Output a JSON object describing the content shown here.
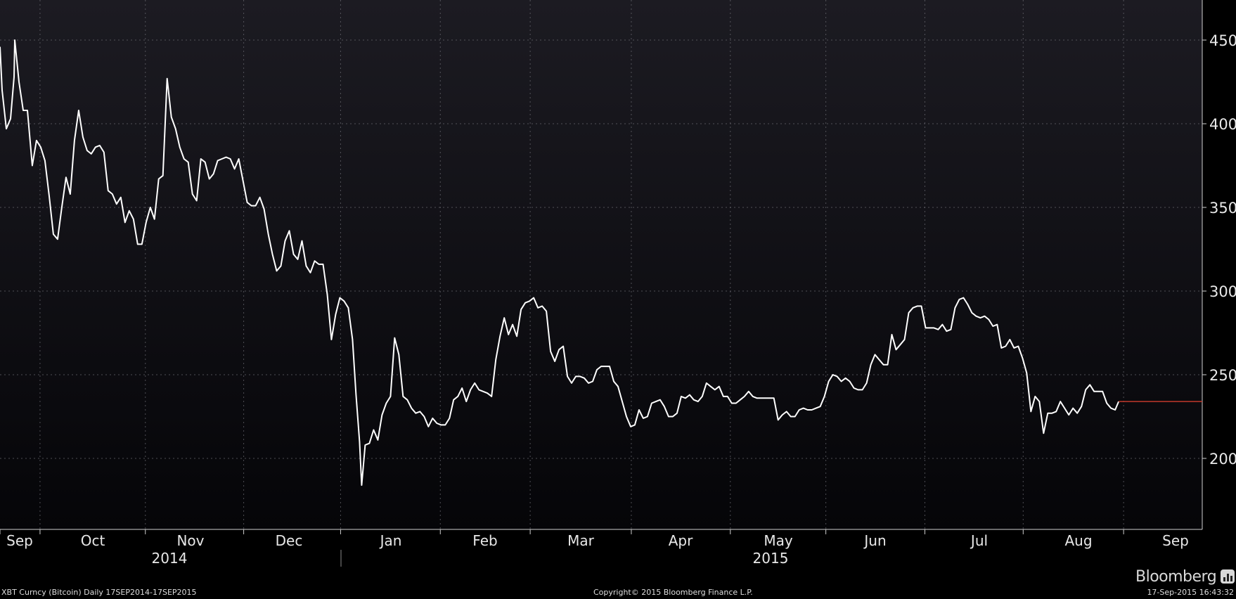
{
  "chart_data": {
    "type": "line",
    "series": [
      {
        "values": [
          [
            0,
            446
          ],
          [
            3,
            420
          ],
          [
            9,
            397
          ],
          [
            15,
            403
          ],
          [
            20,
            428
          ],
          [
            21,
            450
          ],
          [
            27,
            425
          ],
          [
            33,
            408
          ],
          [
            39,
            408
          ],
          [
            46,
            375
          ],
          [
            52,
            390
          ],
          [
            58,
            386
          ],
          [
            64,
            378
          ],
          [
            70,
            357
          ],
          [
            76,
            334
          ],
          [
            82,
            331
          ],
          [
            88,
            350
          ],
          [
            94,
            368
          ],
          [
            100,
            358
          ],
          [
            106,
            390
          ],
          [
            112,
            408
          ],
          [
            118,
            392
          ],
          [
            124,
            384
          ],
          [
            130,
            382
          ],
          [
            136,
            386
          ],
          [
            142,
            387
          ],
          [
            148,
            383
          ],
          [
            154,
            360
          ],
          [
            160,
            358
          ],
          [
            166,
            352
          ],
          [
            172,
            356
          ],
          [
            178,
            341
          ],
          [
            184,
            348
          ],
          [
            190,
            343
          ],
          [
            196,
            328
          ],
          [
            202,
            328
          ],
          [
            208,
            341
          ],
          [
            214,
            350
          ],
          [
            220,
            343
          ],
          [
            226,
            367
          ],
          [
            232,
            369
          ],
          [
            238,
            427
          ],
          [
            244,
            404
          ],
          [
            250,
            397
          ],
          [
            256,
            386
          ],
          [
            262,
            379
          ],
          [
            268,
            377
          ],
          [
            274,
            358
          ],
          [
            280,
            354
          ],
          [
            286,
            379
          ],
          [
            292,
            377
          ],
          [
            298,
            367
          ],
          [
            304,
            370
          ],
          [
            310,
            378
          ],
          [
            316,
            379
          ],
          [
            322,
            380
          ],
          [
            328,
            379
          ],
          [
            334,
            373
          ],
          [
            340,
            379
          ],
          [
            346,
            366
          ],
          [
            352,
            353
          ],
          [
            358,
            351
          ],
          [
            364,
            351
          ],
          [
            370,
            356
          ],
          [
            376,
            349
          ],
          [
            382,
            334
          ],
          [
            388,
            322
          ],
          [
            394,
            312
          ],
          [
            400,
            315
          ],
          [
            406,
            330
          ],
          [
            412,
            336
          ],
          [
            418,
            322
          ],
          [
            424,
            319
          ],
          [
            430,
            330
          ],
          [
            436,
            315
          ],
          [
            442,
            311
          ],
          [
            448,
            318
          ],
          [
            454,
            316
          ],
          [
            460,
            316
          ],
          [
            466,
            298
          ],
          [
            472,
            271
          ],
          [
            478,
            286
          ],
          [
            484,
            296
          ],
          [
            490,
            294
          ],
          [
            496,
            290
          ],
          [
            502,
            271
          ],
          [
            507,
            238
          ],
          [
            512,
            210
          ],
          [
            515,
            184
          ],
          [
            520,
            208
          ],
          [
            526,
            209
          ],
          [
            532,
            217
          ],
          [
            538,
            211
          ],
          [
            544,
            226
          ],
          [
            550,
            233
          ],
          [
            556,
            237
          ],
          [
            562,
            272
          ],
          [
            568,
            262
          ],
          [
            574,
            237
          ],
          [
            580,
            235
          ],
          [
            586,
            230
          ],
          [
            592,
            227
          ],
          [
            598,
            228
          ],
          [
            604,
            225
          ],
          [
            610,
            219
          ],
          [
            616,
            224
          ],
          [
            622,
            221
          ],
          [
            628,
            220
          ],
          [
            634,
            220
          ],
          [
            640,
            224
          ],
          [
            646,
            235
          ],
          [
            652,
            237
          ],
          [
            658,
            242
          ],
          [
            664,
            234
          ],
          [
            670,
            241
          ],
          [
            676,
            245
          ],
          [
            682,
            241
          ],
          [
            688,
            240
          ],
          [
            694,
            239
          ],
          [
            700,
            237
          ],
          [
            706,
            259
          ],
          [
            712,
            273
          ],
          [
            718,
            284
          ],
          [
            724,
            274
          ],
          [
            730,
            280
          ],
          [
            736,
            273
          ],
          [
            742,
            289
          ],
          [
            748,
            293
          ],
          [
            754,
            294
          ],
          [
            760,
            296
          ],
          [
            766,
            290
          ],
          [
            772,
            291
          ],
          [
            778,
            288
          ],
          [
            784,
            264
          ],
          [
            790,
            258
          ],
          [
            796,
            265
          ],
          [
            802,
            267
          ],
          [
            808,
            249
          ],
          [
            814,
            245
          ],
          [
            820,
            249
          ],
          [
            826,
            249
          ],
          [
            832,
            248
          ],
          [
            838,
            245
          ],
          [
            844,
            246
          ],
          [
            850,
            253
          ],
          [
            856,
            255
          ],
          [
            862,
            255
          ],
          [
            868,
            255
          ],
          [
            874,
            246
          ],
          [
            880,
            243
          ],
          [
            886,
            234
          ],
          [
            892,
            225
          ],
          [
            898,
            219
          ],
          [
            904,
            220
          ],
          [
            910,
            229
          ],
          [
            916,
            224
          ],
          [
            922,
            225
          ],
          [
            928,
            233
          ],
          [
            934,
            234
          ],
          [
            940,
            235
          ],
          [
            946,
            231
          ],
          [
            952,
            225
          ],
          [
            958,
            225
          ],
          [
            964,
            227
          ],
          [
            970,
            237
          ],
          [
            976,
            236
          ],
          [
            982,
            238
          ],
          [
            988,
            235
          ],
          [
            994,
            234
          ],
          [
            1000,
            237
          ],
          [
            1006,
            245
          ],
          [
            1012,
            243
          ],
          [
            1018,
            241
          ],
          [
            1024,
            243
          ],
          [
            1030,
            237
          ],
          [
            1036,
            237
          ],
          [
            1042,
            233
          ],
          [
            1048,
            233
          ],
          [
            1054,
            235
          ],
          [
            1060,
            237
          ],
          [
            1066,
            240
          ],
          [
            1072,
            237
          ],
          [
            1078,
            236
          ],
          [
            1084,
            236
          ],
          [
            1090,
            236
          ],
          [
            1096,
            236
          ],
          [
            1102,
            236
          ],
          [
            1108,
            223
          ],
          [
            1114,
            226
          ],
          [
            1120,
            228
          ],
          [
            1126,
            225
          ],
          [
            1132,
            225
          ],
          [
            1138,
            229
          ],
          [
            1144,
            230
          ],
          [
            1150,
            229
          ],
          [
            1156,
            229
          ],
          [
            1162,
            230
          ],
          [
            1168,
            231
          ],
          [
            1174,
            237
          ],
          [
            1180,
            246
          ],
          [
            1186,
            250
          ],
          [
            1192,
            249
          ],
          [
            1198,
            246
          ],
          [
            1204,
            248
          ],
          [
            1210,
            246
          ],
          [
            1216,
            242
          ],
          [
            1222,
            241
          ],
          [
            1228,
            241
          ],
          [
            1234,
            245
          ],
          [
            1240,
            256
          ],
          [
            1246,
            262
          ],
          [
            1252,
            259
          ],
          [
            1258,
            256
          ],
          [
            1264,
            256
          ],
          [
            1270,
            274
          ],
          [
            1276,
            265
          ],
          [
            1282,
            268
          ],
          [
            1288,
            271
          ],
          [
            1294,
            287
          ],
          [
            1300,
            290
          ],
          [
            1306,
            291
          ],
          [
            1312,
            291
          ],
          [
            1318,
            278
          ],
          [
            1324,
            278
          ],
          [
            1330,
            278
          ],
          [
            1336,
            277
          ],
          [
            1342,
            280
          ],
          [
            1348,
            276
          ],
          [
            1354,
            277
          ],
          [
            1360,
            290
          ],
          [
            1366,
            295
          ],
          [
            1372,
            296
          ],
          [
            1378,
            292
          ],
          [
            1384,
            287
          ],
          [
            1390,
            285
          ],
          [
            1396,
            284
          ],
          [
            1402,
            285
          ],
          [
            1408,
            283
          ],
          [
            1414,
            279
          ],
          [
            1420,
            280
          ],
          [
            1426,
            266
          ],
          [
            1432,
            267
          ],
          [
            1438,
            271
          ],
          [
            1444,
            266
          ],
          [
            1450,
            267
          ],
          [
            1456,
            260
          ],
          [
            1462,
            251
          ],
          [
            1468,
            228
          ],
          [
            1474,
            237
          ],
          [
            1480,
            234
          ],
          [
            1486,
            215
          ],
          [
            1492,
            227
          ],
          [
            1498,
            227
          ],
          [
            1504,
            228
          ],
          [
            1510,
            234
          ],
          [
            1516,
            230
          ],
          [
            1522,
            226
          ],
          [
            1528,
            230
          ],
          [
            1534,
            227
          ],
          [
            1540,
            231
          ],
          [
            1546,
            241
          ],
          [
            1552,
            244
          ],
          [
            1558,
            240
          ],
          [
            1564,
            240
          ],
          [
            1570,
            240
          ],
          [
            1576,
            233
          ],
          [
            1582,
            230
          ],
          [
            1588,
            229
          ],
          [
            1593,
            234
          ]
        ],
        "color": "#ffffff"
      }
    ],
    "last_price_marker": {
      "value": 234,
      "color": "#c0392b"
    },
    "x_axis": {
      "months": [
        "Sep",
        "Oct",
        "Nov",
        "Dec",
        "Jan",
        "Feb",
        "Mar",
        "Apr",
        "May",
        "Jun",
        "Jul",
        "Aug",
        "Sep"
      ],
      "years": [
        "2014",
        "2015"
      ]
    },
    "y_axis": {
      "ticks": [
        200,
        250,
        300,
        350,
        400,
        450
      ],
      "ylim": [
        180,
        460
      ],
      "side": "right"
    },
    "grid": true,
    "background": [
      "#1c1b22",
      "#050508"
    ]
  },
  "footer": {
    "left": "XBT Curncy (Bitcoin)  Daily 17SEP2014-17SEP2015",
    "center": "Copyright© 2015 Bloomberg Finance L.P.",
    "right": "17-Sep-2015 16:43:32"
  },
  "brand": {
    "name": "Bloomberg",
    "logo_icon": "bloomberg-chart-icon"
  }
}
